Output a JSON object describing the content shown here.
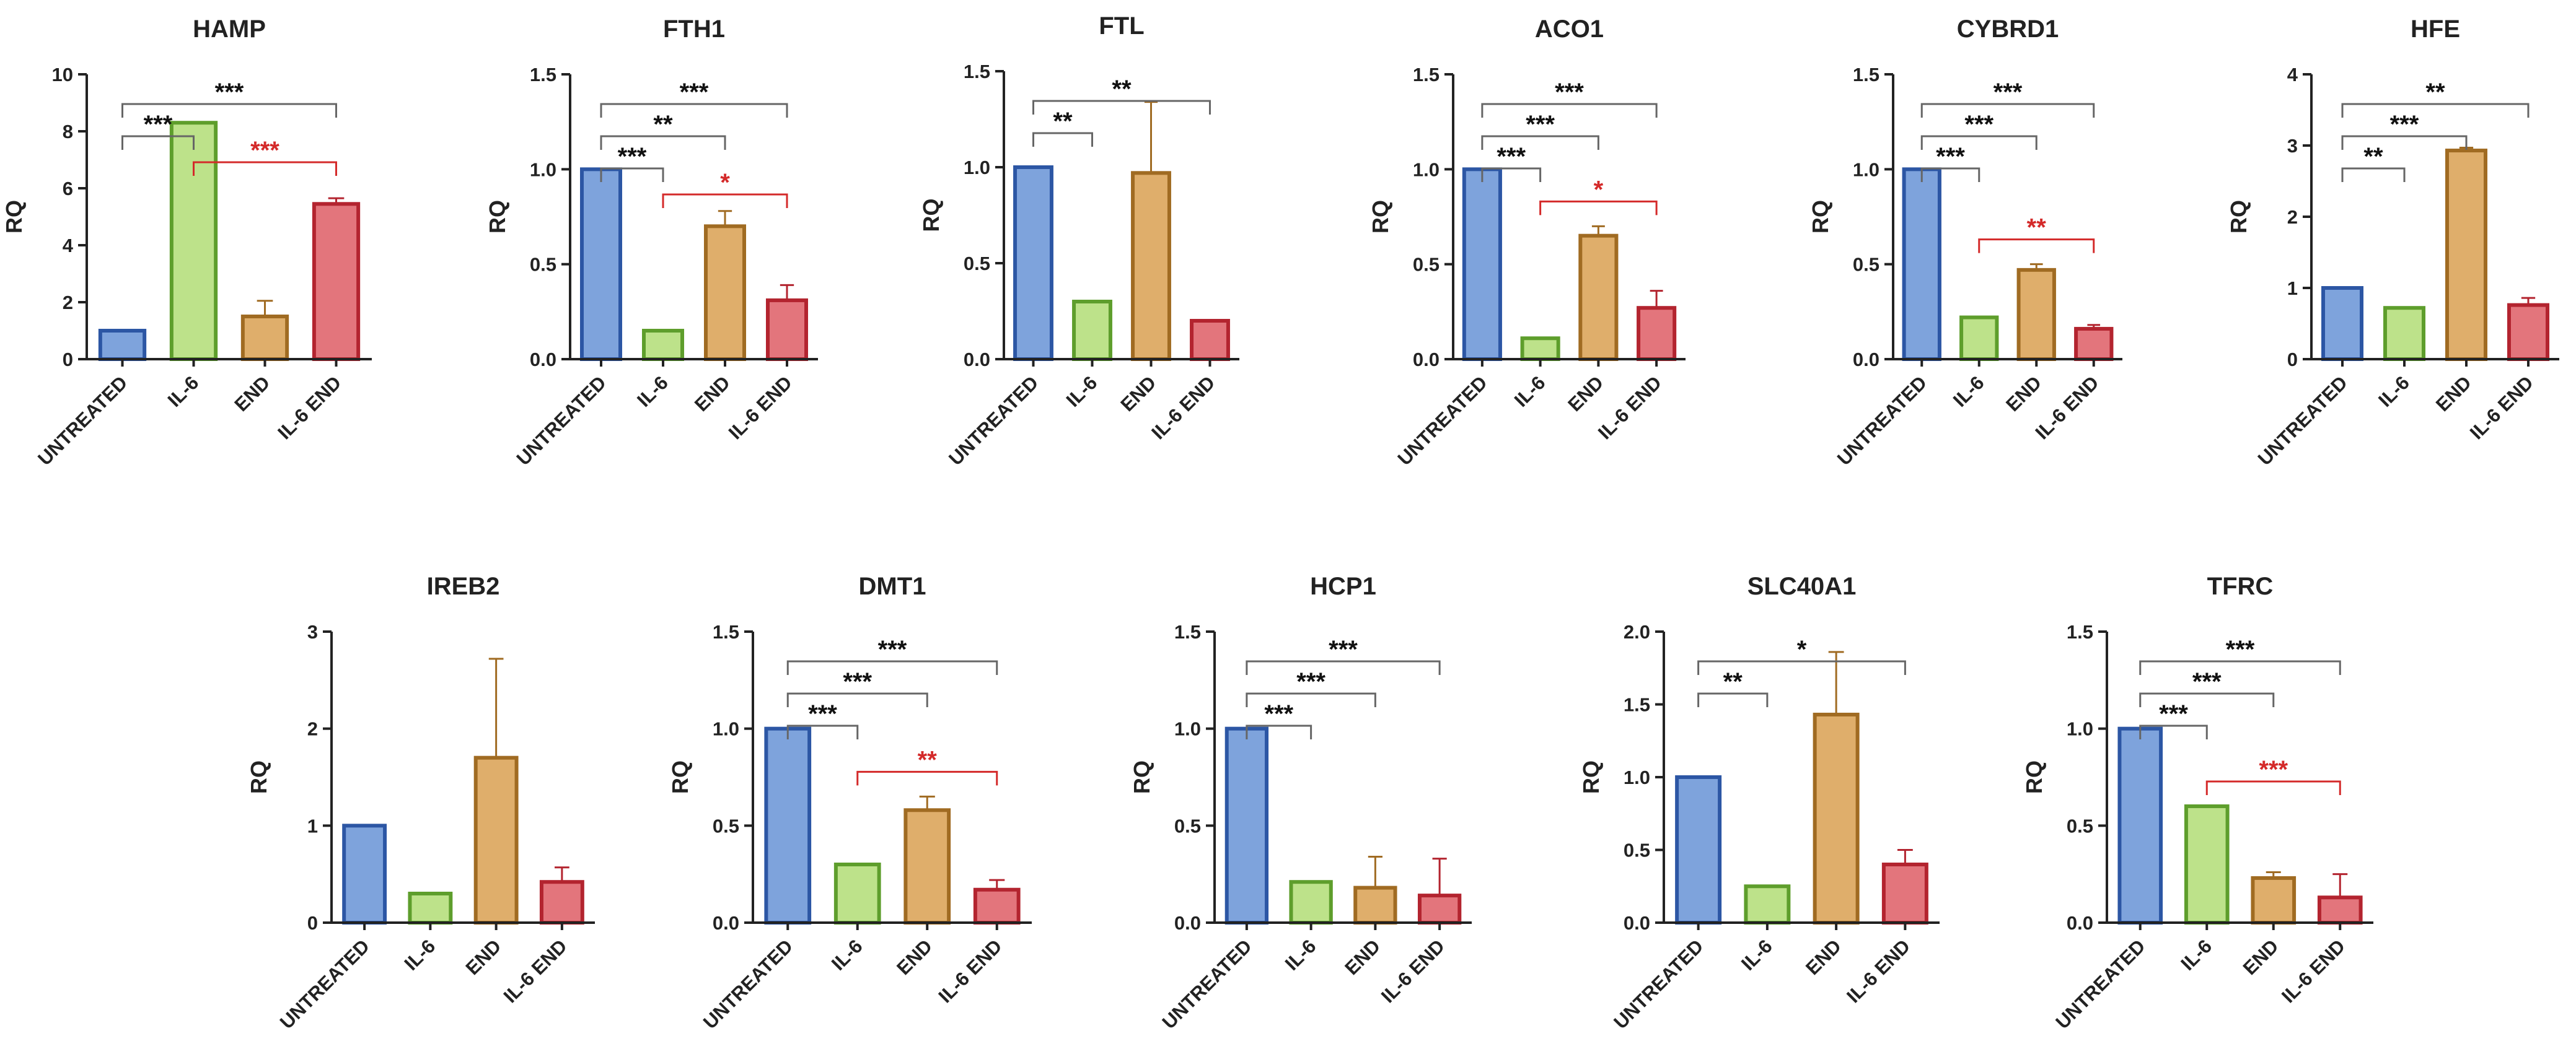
{
  "colors": {
    "untreated_fill": "#7ea3dc",
    "untreated_edge": "#2c56a4",
    "il6_fill": "#bde28a",
    "il6_edge": "#5e9e2c",
    "end_fill": "#dfae6b",
    "end_edge": "#a06b22",
    "il6end_fill": "#e3757c",
    "il6end_edge": "#b3242f",
    "axis": "#222222",
    "sig_black": "#111111",
    "sig_red": "#d42a2a",
    "bracket": "#666666"
  },
  "chart_data": [
    {
      "type": "bar",
      "title": "HAMP",
      "ylabel": "RQ",
      "categories": [
        "UNTREATED",
        "IL-6",
        "END",
        "IL-6 END"
      ],
      "values": [
        1.0,
        8.3,
        1.5,
        5.45
      ],
      "errors": [
        0,
        0,
        0.55,
        0.2
      ],
      "ylim": [
        0,
        10
      ],
      "yticks": [
        "0",
        "2",
        "4",
        "6",
        "8",
        "10"
      ],
      "sig": [
        {
          "from": 0,
          "to": 1,
          "label": "***",
          "color": "black"
        },
        {
          "from": 0,
          "to": 3,
          "label": "***",
          "color": "black"
        },
        {
          "from": 1,
          "to": 3,
          "label": "***",
          "color": "red"
        }
      ]
    },
    {
      "type": "bar",
      "title": "FTH1",
      "ylabel": "RQ",
      "categories": [
        "UNTREATED",
        "IL-6",
        "END",
        "IL-6 END"
      ],
      "values": [
        1.0,
        0.15,
        0.7,
        0.31
      ],
      "errors": [
        0,
        0,
        0.08,
        0.08
      ],
      "ylim": [
        0,
        1.5
      ],
      "yticks": [
        "0.0",
        "0.5",
        "1.0",
        "1.5"
      ],
      "sig": [
        {
          "from": 0,
          "to": 1,
          "label": "***",
          "color": "black"
        },
        {
          "from": 0,
          "to": 2,
          "label": "**",
          "color": "black"
        },
        {
          "from": 0,
          "to": 3,
          "label": "***",
          "color": "black"
        },
        {
          "from": 1,
          "to": 3,
          "label": "*",
          "color": "red"
        }
      ]
    },
    {
      "type": "bar",
      "title": "FTL",
      "ylabel": "RQ",
      "categories": [
        "UNTREATED",
        "IL-6",
        "END",
        "IL-6 END"
      ],
      "values": [
        1.0,
        0.3,
        0.97,
        0.2
      ],
      "errors": [
        0,
        0,
        0.37,
        0
      ],
      "ylim": [
        0,
        1.5
      ],
      "yticks": [
        "0.0",
        "0.5",
        "1.0",
        "1.5"
      ],
      "sig": [
        {
          "from": 0,
          "to": 1,
          "label": "**",
          "color": "black"
        },
        {
          "from": 0,
          "to": 3,
          "label": "**",
          "color": "black"
        }
      ]
    },
    {
      "type": "bar",
      "title": "ACO1",
      "ylabel": "RQ",
      "categories": [
        "UNTREATED",
        "IL-6",
        "END",
        "IL-6 END"
      ],
      "values": [
        1.0,
        0.11,
        0.65,
        0.27
      ],
      "errors": [
        0,
        0,
        0.05,
        0.09
      ],
      "ylim": [
        0,
        1.5
      ],
      "yticks": [
        "0.0",
        "0.5",
        "1.0",
        "1.5"
      ],
      "sig": [
        {
          "from": 0,
          "to": 1,
          "label": "***",
          "color": "black"
        },
        {
          "from": 0,
          "to": 2,
          "label": "***",
          "color": "black"
        },
        {
          "from": 0,
          "to": 3,
          "label": "***",
          "color": "black"
        },
        {
          "from": 1,
          "to": 3,
          "label": "*",
          "color": "red"
        }
      ]
    },
    {
      "type": "bar",
      "title": "CYBRD1",
      "ylabel": "RQ",
      "categories": [
        "UNTREATED",
        "IL-6",
        "END",
        "IL-6 END"
      ],
      "values": [
        1.0,
        0.22,
        0.47,
        0.16
      ],
      "errors": [
        0,
        0,
        0.03,
        0.02
      ],
      "ylim": [
        0,
        1.5
      ],
      "yticks": [
        "0.0",
        "0.5",
        "1.0",
        "1.5"
      ],
      "sig": [
        {
          "from": 0,
          "to": 1,
          "label": "***",
          "color": "black"
        },
        {
          "from": 0,
          "to": 2,
          "label": "***",
          "color": "black"
        },
        {
          "from": 0,
          "to": 3,
          "label": "***",
          "color": "black"
        },
        {
          "from": 1,
          "to": 3,
          "label": "**",
          "color": "red"
        }
      ]
    },
    {
      "type": "bar",
      "title": "HFE",
      "ylabel": "RQ",
      "categories": [
        "UNTREATED",
        "IL-6",
        "END",
        "IL-6 END"
      ],
      "values": [
        1.0,
        0.72,
        2.93,
        0.76
      ],
      "errors": [
        0,
        0,
        0.04,
        0.1
      ],
      "ylim": [
        0,
        4
      ],
      "yticks": [
        "0",
        "1",
        "2",
        "3",
        "4"
      ],
      "sig": [
        {
          "from": 0,
          "to": 1,
          "label": "**",
          "color": "black"
        },
        {
          "from": 0,
          "to": 2,
          "label": "***",
          "color": "black"
        },
        {
          "from": 0,
          "to": 3,
          "label": "**",
          "color": "black"
        }
      ]
    },
    {
      "type": "bar",
      "title": "IREB2",
      "ylabel": "RQ",
      "categories": [
        "UNTREATED",
        "IL-6",
        "END",
        "IL-6 END"
      ],
      "values": [
        1.0,
        0.3,
        1.7,
        0.42
      ],
      "errors": [
        0,
        0,
        1.02,
        0.15
      ],
      "ylim": [
        0,
        3
      ],
      "yticks": [
        "0",
        "1",
        "2",
        "3"
      ],
      "sig": []
    },
    {
      "type": "bar",
      "title": "DMT1",
      "ylabel": "RQ",
      "categories": [
        "UNTREATED",
        "IL-6",
        "END",
        "IL-6 END"
      ],
      "values": [
        1.0,
        0.3,
        0.58,
        0.17
      ],
      "errors": [
        0,
        0,
        0.07,
        0.05
      ],
      "ylim": [
        0,
        1.5
      ],
      "yticks": [
        "0.0",
        "0.5",
        "1.0",
        "1.5"
      ],
      "sig": [
        {
          "from": 0,
          "to": 1,
          "label": "***",
          "color": "black"
        },
        {
          "from": 0,
          "to": 2,
          "label": "***",
          "color": "black"
        },
        {
          "from": 0,
          "to": 3,
          "label": "***",
          "color": "black"
        },
        {
          "from": 1,
          "to": 3,
          "label": "**",
          "color": "red"
        }
      ]
    },
    {
      "type": "bar",
      "title": "HCP1",
      "ylabel": "RQ",
      "categories": [
        "UNTREATED",
        "IL-6",
        "END",
        "IL-6 END"
      ],
      "values": [
        1.0,
        0.21,
        0.18,
        0.14
      ],
      "errors": [
        0,
        0,
        0.16,
        0.19
      ],
      "ylim": [
        0,
        1.5
      ],
      "yticks": [
        "0.0",
        "0.5",
        "1.0",
        "1.5"
      ],
      "sig": [
        {
          "from": 0,
          "to": 1,
          "label": "***",
          "color": "black"
        },
        {
          "from": 0,
          "to": 2,
          "label": "***",
          "color": "black"
        },
        {
          "from": 0,
          "to": 3,
          "label": "***",
          "color": "black"
        }
      ]
    },
    {
      "type": "bar",
      "title": "SLC40A1",
      "ylabel": "RQ",
      "categories": [
        "UNTREATED",
        "IL-6",
        "END",
        "IL-6 END"
      ],
      "values": [
        1.0,
        0.25,
        1.43,
        0.4
      ],
      "errors": [
        0,
        0,
        0.43,
        0.1
      ],
      "ylim": [
        0,
        2
      ],
      "yticks": [
        "0.0",
        "0.5",
        "1.0",
        "1.5",
        "2.0"
      ],
      "sig": [
        {
          "from": 0,
          "to": 1,
          "label": "**",
          "color": "black"
        },
        {
          "from": 0,
          "to": 3,
          "label": "*",
          "color": "black"
        }
      ]
    },
    {
      "type": "bar",
      "title": "TFRC",
      "ylabel": "RQ",
      "categories": [
        "UNTREATED",
        "IL-6",
        "END",
        "IL-6 END"
      ],
      "values": [
        1.0,
        0.6,
        0.23,
        0.13
      ],
      "errors": [
        0,
        0,
        0.03,
        0.12
      ],
      "ylim": [
        0,
        1.5
      ],
      "yticks": [
        "0.0",
        "0.5",
        "1.0",
        "1.5"
      ],
      "sig": [
        {
          "from": 0,
          "to": 1,
          "label": "***",
          "color": "black"
        },
        {
          "from": 0,
          "to": 2,
          "label": "***",
          "color": "black"
        },
        {
          "from": 0,
          "to": 3,
          "label": "***",
          "color": "black"
        },
        {
          "from": 1,
          "to": 3,
          "label": "***",
          "color": "red"
        }
      ]
    }
  ]
}
